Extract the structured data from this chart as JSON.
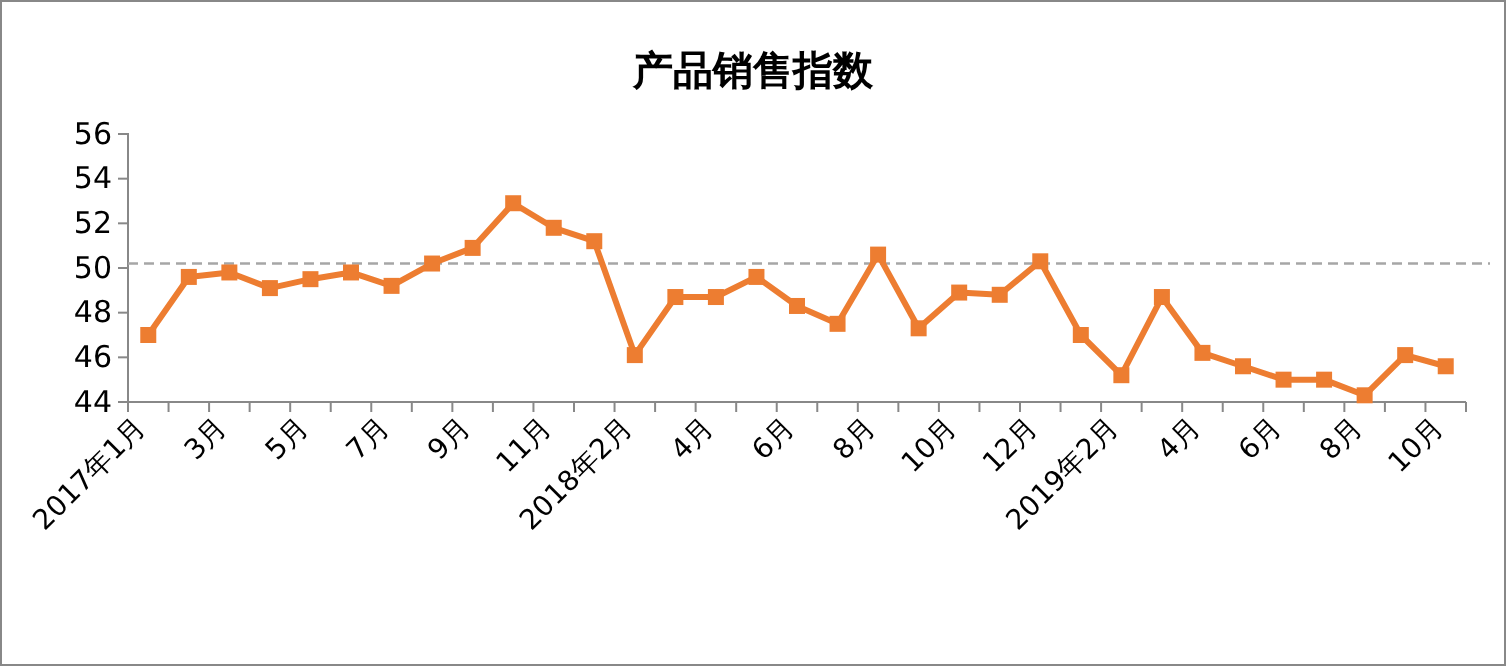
{
  "chart_data": {
    "type": "line",
    "title": "产品销售指数",
    "categories": [
      "2017年1月",
      null,
      "3月",
      null,
      "5月",
      null,
      "7月",
      null,
      "9月",
      null,
      "11月",
      null,
      "2018年2月",
      null,
      "4月",
      null,
      "6月",
      null,
      "8月",
      null,
      "10月",
      null,
      "12月",
      null,
      "2019年2月",
      null,
      "4月",
      null,
      "6月",
      null,
      "8月",
      null,
      "10月"
    ],
    "series": [
      {
        "color": "#ed7d31",
        "values": [
          47.0,
          49.6,
          49.8,
          49.1,
          49.5,
          49.8,
          49.2,
          50.2,
          50.9,
          52.9,
          51.8,
          51.2,
          46.1,
          48.7,
          48.7,
          49.6,
          48.3,
          47.5,
          50.6,
          47.3,
          48.9,
          48.8,
          50.3,
          47.0,
          45.2,
          48.7,
          46.2,
          45.6,
          45.0,
          45.0,
          44.3,
          46.1,
          45.6
        ]
      }
    ],
    "ylim": [
      44,
      56
    ],
    "yticks": [
      44,
      46,
      48,
      50,
      52,
      54,
      56
    ],
    "ref_lines": [
      {
        "axis": "y",
        "value": 50.2,
        "color": "#a6a6a6",
        "line_style": "dashed"
      }
    ],
    "marker": "square",
    "line_style": "solid",
    "grid": false
  }
}
